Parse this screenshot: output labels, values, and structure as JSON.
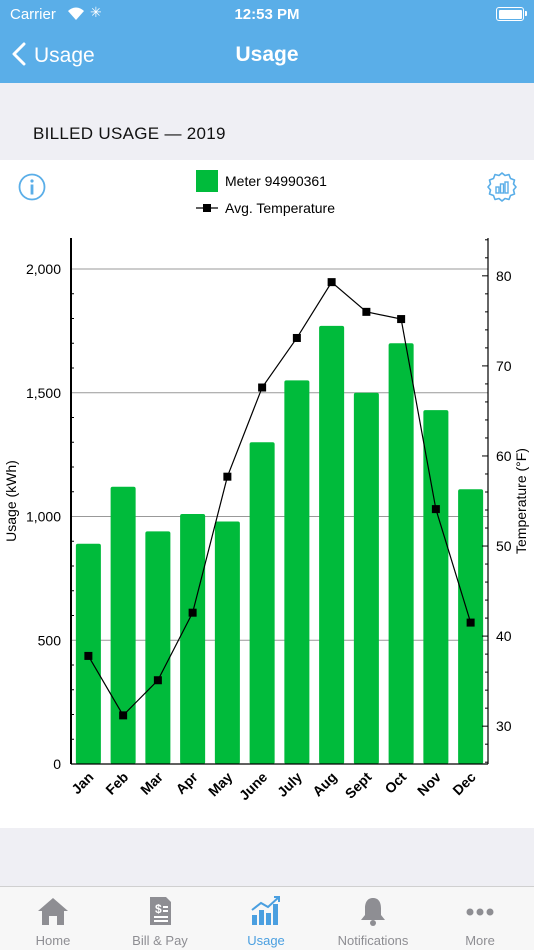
{
  "status_bar": {
    "carrier": "Carrier",
    "time": "12:53 PM"
  },
  "nav": {
    "back_label": "Usage",
    "title": "Usage"
  },
  "section": {
    "header": "BILLED USAGE — 2019"
  },
  "colors": {
    "brand_blue": "#5aaee8",
    "bar_green": "#00bb3b",
    "tab_active": "#4a9fe0",
    "tab_inactive": "#8e8e93"
  },
  "chart_data": {
    "type": "bar",
    "categories": [
      "Jan",
      "Feb",
      "Mar",
      "Apr",
      "May",
      "June",
      "July",
      "Aug",
      "Sept",
      "Oct",
      "Nov",
      "Dec"
    ],
    "series": [
      {
        "name": "Meter 94990361",
        "type": "bar",
        "axis": "left",
        "values": [
          890,
          1120,
          940,
          1010,
          980,
          1300,
          1550,
          1770,
          1500,
          1700,
          1430,
          1110
        ]
      },
      {
        "name": "Avg. Temperature",
        "type": "line",
        "axis": "right",
        "values": [
          37.8,
          31.2,
          35.1,
          42.6,
          57.7,
          67.6,
          73.1,
          79.3,
          76.0,
          75.2,
          54.1,
          41.5
        ]
      }
    ],
    "ylabel": "Usage (kWh)",
    "y2label": "Temperature (°F)",
    "ylim": [
      0,
      2000
    ],
    "y2lim": [
      25.8,
      84.2
    ],
    "yticks": [
      "0",
      "500",
      "1,000",
      "1,500",
      "2,000"
    ],
    "y2ticks": [
      "30",
      "40",
      "50",
      "60",
      "70",
      "80"
    ],
    "grid": true,
    "legend_placement": "top-center"
  },
  "tabs": [
    {
      "label": "Home",
      "icon": "home-icon"
    },
    {
      "label": "Bill & Pay",
      "icon": "bill-icon"
    },
    {
      "label": "Usage",
      "icon": "usage-chart-icon",
      "active": true
    },
    {
      "label": "Notifications",
      "icon": "bell-icon"
    },
    {
      "label": "More",
      "icon": "more-icon"
    }
  ]
}
